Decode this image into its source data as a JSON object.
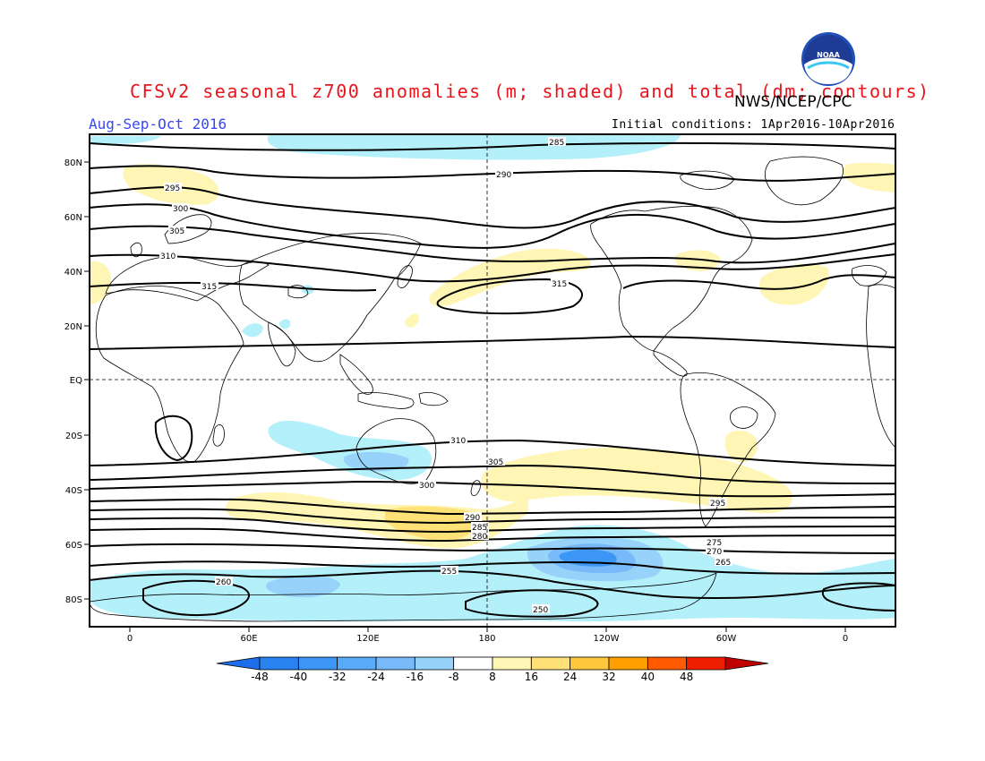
{
  "header": {
    "title": "CFSv2 seasonal z700 anomalies (m; shaded) and total (dm; contours)",
    "season": "Aug-Sep-Oct 2016",
    "agency": "NWS/NCEP/CPC",
    "initial_conditions": "Initial conditions: 1Apr2016-10Apr2016",
    "logo_text": "NOAA"
  },
  "map": {
    "lat_labels": [
      "80N",
      "60N",
      "40N",
      "20N",
      "EQ",
      "20S",
      "40S",
      "60S",
      "80S"
    ],
    "lon_labels": [
      "0",
      "60E",
      "120E",
      "180",
      "120W",
      "60W",
      "0"
    ],
    "contour_labels": [
      "285",
      "290",
      "295",
      "300",
      "305",
      "310",
      "315",
      "315",
      "310",
      "305",
      "300",
      "295",
      "290",
      "285",
      "280",
      "275",
      "270",
      "265",
      "260",
      "255",
      "250"
    ],
    "colors": {
      "contour": "#000000",
      "coast": "#000000",
      "neg_light": "#b4f0fa",
      "neg_mid": "#96d2fa",
      "neg_strong": "#78b9fa",
      "neg_stronger": "#3c96f5",
      "pos_light": "#fff5b4",
      "pos_mid": "#ffe178",
      "pos_strong": "#ffc83c"
    }
  },
  "colorbar": {
    "tick_labels": [
      "-48",
      "-40",
      "-32",
      "-24",
      "-16",
      "-8",
      "8",
      "16",
      "24",
      "32",
      "40",
      "48"
    ],
    "colors": [
      "#1e6eeb",
      "#2882f0",
      "#3c96f5",
      "#5aaafa",
      "#78b9fa",
      "#96d2fa",
      "#ffffff",
      "#fff5b4",
      "#ffe178",
      "#ffc83c",
      "#ffa000",
      "#ff5a00",
      "#f01e00",
      "#c00000"
    ]
  }
}
